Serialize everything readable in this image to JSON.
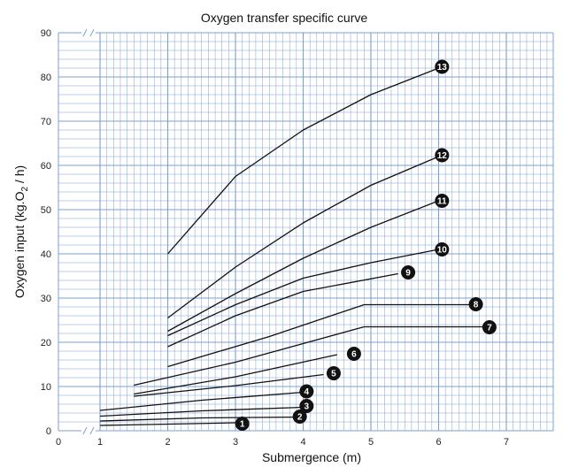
{
  "chart_data": {
    "type": "line",
    "title": "Oxygen transfer specific curve",
    "xlabel": "Submergence (m)",
    "ylabel_parts": {
      "main": "Oxygen input (kg.O",
      "sub": "2",
      "end": " / h)"
    },
    "xlim": [
      1,
      7.5
    ],
    "ylim": [
      0,
      90
    ],
    "x_ticks": [
      0,
      1,
      2,
      3,
      4,
      5,
      6,
      7
    ],
    "y_ticks": [
      0,
      10,
      20,
      30,
      40,
      50,
      60,
      70,
      80,
      90
    ],
    "axis_break": true,
    "grid": true,
    "colors": {
      "grid": "#7f9fcf",
      "curve": "#111111",
      "badge": "#111111"
    },
    "series": [
      {
        "label": "1",
        "points": [
          [
            1,
            1.2
          ],
          [
            3,
            1.8
          ]
        ],
        "badge_at": [
          3.1,
          1.6
        ]
      },
      {
        "label": "2",
        "points": [
          [
            1,
            2.2
          ],
          [
            2.5,
            2.9
          ],
          [
            4,
            3.1
          ]
        ],
        "badge_at": [
          3.95,
          3.2
        ]
      },
      {
        "label": "3",
        "points": [
          [
            1,
            3.3
          ],
          [
            2.5,
            4.5
          ],
          [
            4,
            5.3
          ]
        ],
        "badge_at": [
          4.05,
          5.6
        ]
      },
      {
        "label": "4",
        "points": [
          [
            1,
            4.6
          ],
          [
            2.5,
            6.9
          ],
          [
            4,
            8.7
          ]
        ],
        "badge_at": [
          4.05,
          8.9
        ]
      },
      {
        "label": "5",
        "points": [
          [
            1.5,
            7.8
          ],
          [
            3,
            10.2
          ],
          [
            4.3,
            12.7
          ]
        ],
        "badge_at": [
          4.45,
          13.0
        ]
      },
      {
        "label": "6",
        "points": [
          [
            1.5,
            8.3
          ],
          [
            3,
            12.2
          ],
          [
            4.5,
            17.2
          ]
        ],
        "badge_at": [
          4.75,
          17.4
        ]
      },
      {
        "label": "7",
        "points": [
          [
            1.5,
            10.3
          ],
          [
            3,
            15.5
          ],
          [
            4.9,
            23.5
          ],
          [
            6.7,
            23.5
          ]
        ],
        "badge_at": [
          6.75,
          23.4
        ]
      },
      {
        "label": "8",
        "points": [
          [
            2,
            14.5
          ],
          [
            3.5,
            21.3
          ],
          [
            4.9,
            28.5
          ],
          [
            6.5,
            28.5
          ]
        ],
        "badge_at": [
          6.55,
          28.6
        ]
      },
      {
        "label": "9",
        "points": [
          [
            2,
            19
          ],
          [
            3,
            26
          ],
          [
            4,
            31.5
          ],
          [
            5.4,
            35.5
          ]
        ],
        "badge_at": [
          5.55,
          35.8
        ]
      },
      {
        "label": "10",
        "points": [
          [
            2,
            21.5
          ],
          [
            3,
            28.5
          ],
          [
            4,
            34.5
          ],
          [
            5,
            38
          ],
          [
            6,
            41
          ]
        ],
        "badge_at": [
          6.05,
          41.0
        ]
      },
      {
        "label": "11",
        "points": [
          [
            2,
            22.5
          ],
          [
            3,
            31
          ],
          [
            4,
            39
          ],
          [
            5,
            46
          ],
          [
            6,
            52
          ]
        ],
        "badge_at": [
          6.05,
          52.0
        ]
      },
      {
        "label": "12",
        "points": [
          [
            2,
            25.5
          ],
          [
            3,
            37
          ],
          [
            4,
            47
          ],
          [
            5,
            55.5
          ],
          [
            6,
            62
          ]
        ],
        "badge_at": [
          6.05,
          62.3
        ]
      },
      {
        "label": "13",
        "points": [
          [
            2,
            40
          ],
          [
            3,
            57.5
          ],
          [
            4,
            68
          ],
          [
            5,
            76
          ],
          [
            6,
            82
          ]
        ],
        "badge_at": [
          6.05,
          82.3
        ]
      }
    ]
  }
}
